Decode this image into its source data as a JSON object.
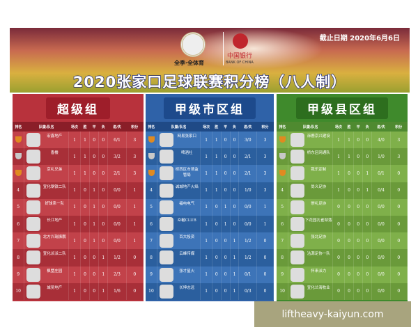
{
  "banner": {
    "logo1_text": "全季·全体育",
    "logo2_text": "中国银行",
    "logo2_en": "BANK OF CHINA",
    "date": "截止日期 2020年6月6日",
    "title": "2020张家口足球联赛积分榜（八人制）"
  },
  "columns": [
    "排名",
    "队徽/队名",
    "场次",
    "胜",
    "平",
    "负",
    "进/失",
    "积分"
  ],
  "groups": [
    {
      "name": "超级组",
      "colors": {
        "head": "#b8323c",
        "pill": "#9e1e2a",
        "th": "#8a1e28",
        "rowA": "#c2424a",
        "rowB": "#a82f38"
      },
      "rows": [
        [
          "1",
          "宏鑫地产",
          "1",
          "1",
          "0",
          "0",
          "6/1",
          "3"
        ],
        [
          "2",
          "香楼",
          "1",
          "1",
          "0",
          "0",
          "3/2",
          "3"
        ],
        [
          "3",
          "京礼兄弟",
          "1",
          "1",
          "0",
          "0",
          "2/1",
          "3"
        ],
        [
          "4",
          "宣化钢铁二队",
          "1",
          "0",
          "1",
          "0",
          "0/0",
          "1"
        ],
        [
          "5",
          "好球系一队",
          "1",
          "0",
          "1",
          "0",
          "0/0",
          "1"
        ],
        [
          "6",
          "长江地产",
          "1",
          "0",
          "1",
          "0",
          "0/0",
          "1"
        ],
        [
          "7",
          "北方兴瑞振鹏",
          "1",
          "0",
          "1",
          "0",
          "0/0",
          "1"
        ],
        [
          "8",
          "宣化派派二队",
          "1",
          "0",
          "0",
          "1",
          "1/2",
          "0"
        ],
        [
          "9",
          "枫墅庄园",
          "1",
          "0",
          "0",
          "1",
          "2/3",
          "0"
        ],
        [
          "10",
          "城吴地产",
          "1",
          "0",
          "0",
          "1",
          "1/6",
          "0"
        ]
      ]
    },
    {
      "name": "甲级市区组",
      "colors": {
        "head": "#2f62a8",
        "pill": "#1d4a8c",
        "th": "#1f4a86",
        "rowA": "#3d74b8",
        "rowB": "#2b5f9e"
      },
      "rows": [
        [
          "1",
          "网易张家口",
          "1",
          "1",
          "0",
          "0",
          "3/0",
          "3"
        ],
        [
          "2",
          "啤酒社",
          "1",
          "1",
          "0",
          "0",
          "2/1",
          "3"
        ],
        [
          "3",
          "桥西区市场监管局",
          "1",
          "1",
          "0",
          "0",
          "2/1",
          "3"
        ],
        [
          "4",
          "诚城地产火焰",
          "1",
          "1",
          "0",
          "0",
          "1/0",
          "3"
        ],
        [
          "5",
          "福电电气",
          "1",
          "0",
          "1",
          "0",
          "0/0",
          "1"
        ],
        [
          "6",
          "众樾CLUB",
          "1",
          "0",
          "1",
          "0",
          "0/0",
          "1"
        ],
        [
          "7",
          "百大投资",
          "1",
          "0",
          "0",
          "1",
          "1/2",
          "0"
        ],
        [
          "8",
          "云峰传媒",
          "1",
          "0",
          "0",
          "1",
          "1/2",
          "0"
        ],
        [
          "9",
          "张才星火",
          "1",
          "0",
          "0",
          "1",
          "0/1",
          "0"
        ],
        [
          "10",
          "长坤志远",
          "1",
          "0",
          "0",
          "1",
          "0/3",
          "0"
        ]
      ]
    },
    {
      "name": "甲级县区组",
      "colors": {
        "head": "#3f8a2c",
        "pill": "#2d6e1e",
        "th": "#4f8a30",
        "rowA": "#7fb04a",
        "rowB": "#6a9a3a"
      },
      "rows": [
        [
          "1",
          "涿鹿京兴建设",
          "1",
          "1",
          "0",
          "0",
          "4/0",
          "3"
        ],
        [
          "2",
          "桥东区网通队",
          "1",
          "1",
          "0",
          "0",
          "1/0",
          "3"
        ],
        [
          "3",
          "我乐定制",
          "1",
          "0",
          "0",
          "1",
          "0/1",
          "0"
        ],
        [
          "4",
          "尚义足协",
          "1",
          "0",
          "0",
          "1",
          "0/4",
          "0"
        ],
        [
          "5",
          "崇礼足协",
          "0",
          "0",
          "0",
          "0",
          "0/0",
          "0"
        ],
        [
          "6",
          "下花园孔雀部落",
          "0",
          "0",
          "0",
          "0",
          "0/0",
          "0"
        ],
        [
          "7",
          "张北足协",
          "0",
          "0",
          "0",
          "0",
          "0/0",
          "0"
        ],
        [
          "8",
          "沽源足协一队",
          "0",
          "0",
          "0",
          "0",
          "0/0",
          "0"
        ],
        [
          "9",
          "怀来派力",
          "0",
          "0",
          "0",
          "0",
          "0/0",
          "0"
        ],
        [
          "10",
          "宣化兰海牧业",
          "0",
          "0",
          "0",
          "0",
          "0/0",
          "0"
        ]
      ]
    }
  ],
  "watermark": "liftheavy-kaiyun.com"
}
